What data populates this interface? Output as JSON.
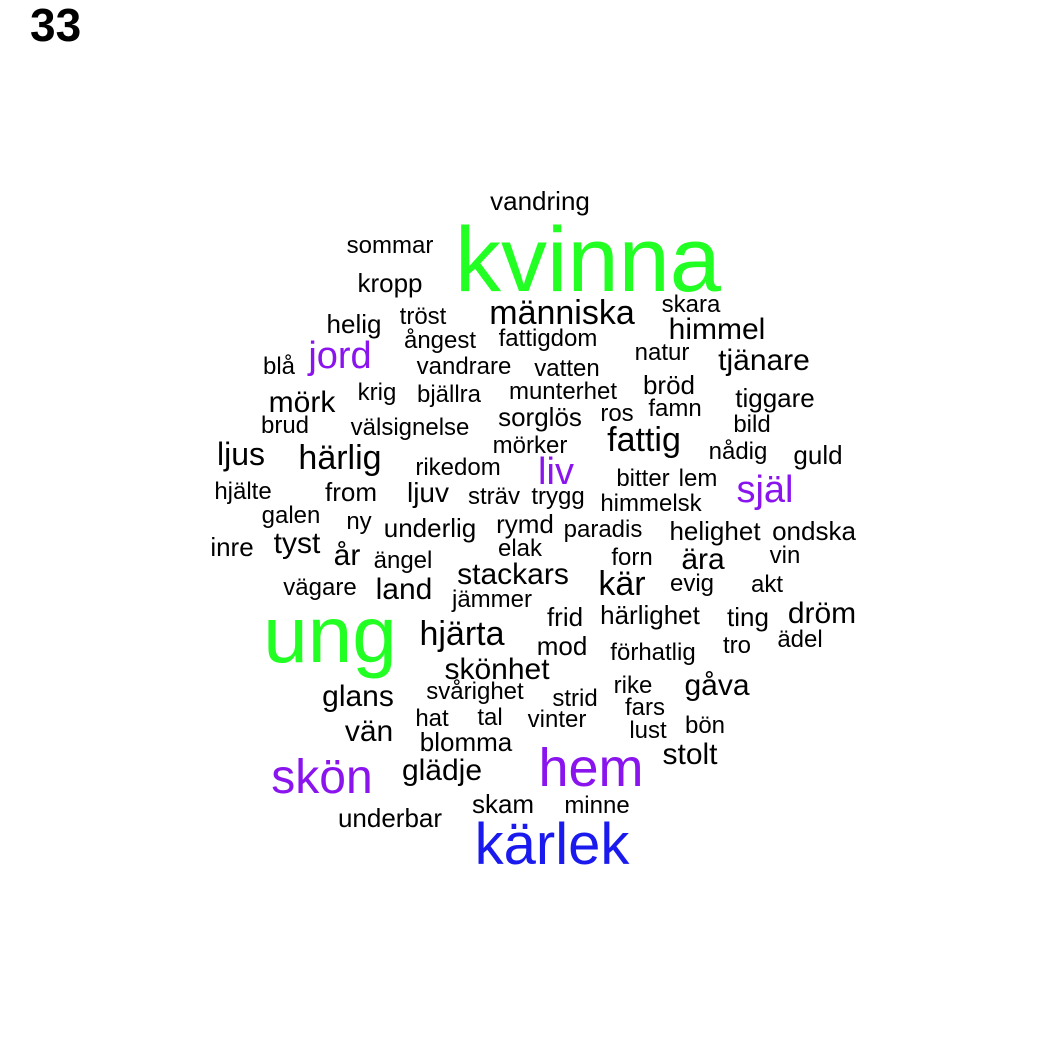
{
  "page_number": "33",
  "colors": {
    "green": "#22ff22",
    "blue": "#1a1aee",
    "purple": "#8a14ee",
    "black": "#000000"
  },
  "words": [
    {
      "text": "kvinna",
      "color": "green",
      "tier": "xxl"
    },
    {
      "text": "ung",
      "color": "green",
      "tier": "xxl"
    },
    {
      "text": "kärlek",
      "color": "blue",
      "tier": "xl"
    },
    {
      "text": "hem",
      "color": "purple",
      "tier": "xl"
    },
    {
      "text": "skön",
      "color": "purple",
      "tier": "l"
    },
    {
      "text": "jord",
      "color": "purple",
      "tier": "m"
    },
    {
      "text": "själ",
      "color": "purple",
      "tier": "m"
    },
    {
      "text": "liv",
      "color": "purple",
      "tier": "m"
    },
    {
      "text": "människa",
      "color": "black",
      "tier": "s"
    },
    {
      "text": "fattig",
      "color": "black",
      "tier": "s"
    },
    {
      "text": "hjärta",
      "color": "black",
      "tier": "s"
    },
    {
      "text": "kär",
      "color": "black",
      "tier": "s"
    },
    {
      "text": "härlig",
      "color": "black",
      "tier": "s"
    },
    {
      "text": "stackars",
      "color": "black",
      "tier": "s"
    },
    {
      "text": "himmel",
      "color": "black",
      "tier": "s"
    },
    {
      "text": "tjänare",
      "color": "black",
      "tier": "s"
    },
    {
      "text": "dröm",
      "color": "black",
      "tier": "s"
    },
    {
      "text": "skönhet",
      "color": "black",
      "tier": "s"
    },
    {
      "text": "gåva",
      "color": "black",
      "tier": "s"
    },
    {
      "text": "glans",
      "color": "black",
      "tier": "s"
    },
    {
      "text": "vän",
      "color": "black",
      "tier": "s"
    },
    {
      "text": "glädje",
      "color": "black",
      "tier": "s"
    },
    {
      "text": "stolt",
      "color": "black",
      "tier": "s"
    },
    {
      "text": "mörk",
      "color": "black",
      "tier": "s"
    },
    {
      "text": "tyst",
      "color": "black",
      "tier": "s"
    },
    {
      "text": "land",
      "color": "black",
      "tier": "s"
    },
    {
      "text": "vandring",
      "color": "black",
      "tier": "xs"
    },
    {
      "text": "sommar",
      "color": "black",
      "tier": "xs"
    },
    {
      "text": "kropp",
      "color": "black",
      "tier": "xs"
    },
    {
      "text": "skara",
      "color": "black",
      "tier": "xs"
    },
    {
      "text": "helig",
      "color": "black",
      "tier": "xs"
    },
    {
      "text": "tröst",
      "color": "black",
      "tier": "xs"
    },
    {
      "text": "ångest",
      "color": "black",
      "tier": "xs"
    },
    {
      "text": "fattigdom",
      "color": "black",
      "tier": "xs"
    },
    {
      "text": "natur",
      "color": "black",
      "tier": "xs"
    },
    {
      "text": "blå",
      "color": "black",
      "tier": "xs"
    },
    {
      "text": "vandrare",
      "color": "black",
      "tier": "xs"
    },
    {
      "text": "vatten",
      "color": "black",
      "tier": "xs"
    },
    {
      "text": "bröd",
      "color": "black",
      "tier": "xs"
    },
    {
      "text": "krig",
      "color": "black",
      "tier": "xs"
    },
    {
      "text": "bjällra",
      "color": "black",
      "tier": "xs"
    },
    {
      "text": "munterhet",
      "color": "black",
      "tier": "xs"
    },
    {
      "text": "tiggare",
      "color": "black",
      "tier": "xs"
    },
    {
      "text": "famn",
      "color": "black",
      "tier": "xs"
    },
    {
      "text": "sorglös",
      "color": "black",
      "tier": "xs"
    },
    {
      "text": "ros",
      "color": "black",
      "tier": "xs"
    },
    {
      "text": "brud",
      "color": "black",
      "tier": "xs"
    },
    {
      "text": "välsignelse",
      "color": "black",
      "tier": "xs"
    },
    {
      "text": "bild",
      "color": "black",
      "tier": "xs"
    },
    {
      "text": "ljus",
      "color": "black",
      "tier": "xs"
    },
    {
      "text": "mörker",
      "color": "black",
      "tier": "xs"
    },
    {
      "text": "nådig",
      "color": "black",
      "tier": "xs"
    },
    {
      "text": "guld",
      "color": "black",
      "tier": "xs"
    },
    {
      "text": "rikedom",
      "color": "black",
      "tier": "xs"
    },
    {
      "text": "bitter",
      "color": "black",
      "tier": "xs"
    },
    {
      "text": "lem",
      "color": "black",
      "tier": "xs"
    },
    {
      "text": "hjälte",
      "color": "black",
      "tier": "xs"
    },
    {
      "text": "from",
      "color": "black",
      "tier": "xs"
    },
    {
      "text": "ljuv",
      "color": "black",
      "tier": "xs"
    },
    {
      "text": "sträv",
      "color": "black",
      "tier": "xs"
    },
    {
      "text": "trygg",
      "color": "black",
      "tier": "xs"
    },
    {
      "text": "himmelsk",
      "color": "black",
      "tier": "xs"
    },
    {
      "text": "galen",
      "color": "black",
      "tier": "xs"
    },
    {
      "text": "ny",
      "color": "black",
      "tier": "xs"
    },
    {
      "text": "underlig",
      "color": "black",
      "tier": "xs"
    },
    {
      "text": "rymd",
      "color": "black",
      "tier": "xs"
    },
    {
      "text": "paradis",
      "color": "black",
      "tier": "xs"
    },
    {
      "text": "helighet",
      "color": "black",
      "tier": "xs"
    },
    {
      "text": "ondska",
      "color": "black",
      "tier": "xs"
    },
    {
      "text": "inre",
      "color": "black",
      "tier": "xs"
    },
    {
      "text": "år",
      "color": "black",
      "tier": "xs"
    },
    {
      "text": "ängel",
      "color": "black",
      "tier": "xs"
    },
    {
      "text": "elak",
      "color": "black",
      "tier": "xs"
    },
    {
      "text": "forn",
      "color": "black",
      "tier": "xs"
    },
    {
      "text": "ära",
      "color": "black",
      "tier": "xs"
    },
    {
      "text": "vin",
      "color": "black",
      "tier": "xs"
    },
    {
      "text": "vägare",
      "color": "black",
      "tier": "xs"
    },
    {
      "text": "jämmer",
      "color": "black",
      "tier": "xs"
    },
    {
      "text": "evig",
      "color": "black",
      "tier": "xs"
    },
    {
      "text": "akt",
      "color": "black",
      "tier": "xs"
    },
    {
      "text": "frid",
      "color": "black",
      "tier": "xs"
    },
    {
      "text": "härlighet",
      "color": "black",
      "tier": "xs"
    },
    {
      "text": "ting",
      "color": "black",
      "tier": "xs"
    },
    {
      "text": "ädel",
      "color": "black",
      "tier": "xs"
    },
    {
      "text": "mod",
      "color": "black",
      "tier": "xs"
    },
    {
      "text": "förhatlig",
      "color": "black",
      "tier": "xs"
    },
    {
      "text": "tro",
      "color": "black",
      "tier": "xs"
    },
    {
      "text": "svårighet",
      "color": "black",
      "tier": "xs"
    },
    {
      "text": "strid",
      "color": "black",
      "tier": "xs"
    },
    {
      "text": "rike",
      "color": "black",
      "tier": "xs"
    },
    {
      "text": "fars",
      "color": "black",
      "tier": "xs"
    },
    {
      "text": "hat",
      "color": "black",
      "tier": "xs"
    },
    {
      "text": "tal",
      "color": "black",
      "tier": "xs"
    },
    {
      "text": "vinter",
      "color": "black",
      "tier": "xs"
    },
    {
      "text": "lust",
      "color": "black",
      "tier": "xs"
    },
    {
      "text": "bön",
      "color": "black",
      "tier": "xs"
    },
    {
      "text": "blomma",
      "color": "black",
      "tier": "xs"
    },
    {
      "text": "skam",
      "color": "black",
      "tier": "xs"
    },
    {
      "text": "minne",
      "color": "black",
      "tier": "xs"
    },
    {
      "text": "underbar",
      "color": "black",
      "tier": "xs"
    }
  ]
}
